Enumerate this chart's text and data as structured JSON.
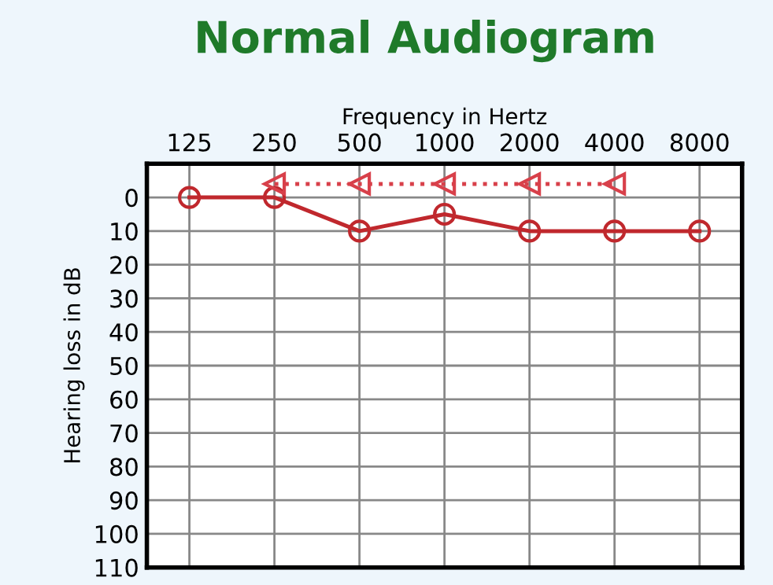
{
  "chart_data": {
    "type": "line",
    "title": "Normal Audiogram",
    "xlabel": "Frequency in Hertz",
    "ylabel": "Hearing loss in dB",
    "categories": [
      "125",
      "250",
      "500",
      "1000",
      "2000",
      "4000",
      "8000"
    ],
    "series": [
      {
        "color": "#c0282d",
        "values": [
          0,
          0,
          10,
          5,
          10,
          10,
          10
        ],
        "marker": "circle",
        "line_style": "solid"
      },
      {
        "color": "#d8404a",
        "values": [
          null,
          -4,
          -4,
          -4,
          -4,
          -4,
          null
        ],
        "marker": "triangle",
        "line_style": "dotted"
      }
    ],
    "ylim": [
      110,
      -10
    ],
    "yticks": [
      0,
      10,
      20,
      30,
      40,
      50,
      60,
      70,
      80,
      90,
      100,
      110
    ],
    "grid": true,
    "legend": false
  }
}
